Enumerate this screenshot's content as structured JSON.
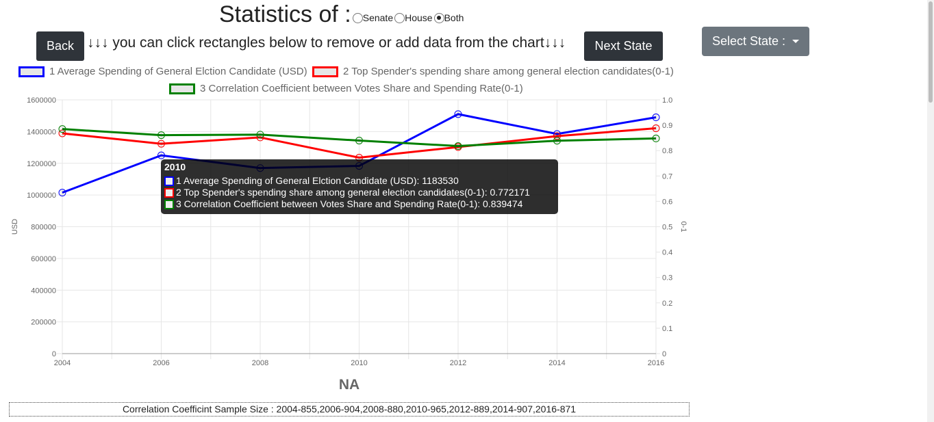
{
  "header": {
    "title": "Statistics of :",
    "radios": [
      {
        "label": "Senate",
        "checked": false
      },
      {
        "label": "House",
        "checked": false
      },
      {
        "label": "Both",
        "checked": true
      }
    ],
    "back_label": "Back",
    "instruction": "↓↓↓ you can click rectangles below to remove or add data from the chart↓↓↓",
    "next_label": "Next State",
    "select_label": "Select State :"
  },
  "legend": [
    {
      "label": "1 Average Spending of General Elction Candidate (USD)",
      "color": "#0000ff"
    },
    {
      "label": "2 Top Spender's spending share among general election candidates(0-1)",
      "color": "#ff0000"
    },
    {
      "label": "3 Correlation Coefficient between Votes Share and Spending Rate(0-1)",
      "color": "#008000"
    }
  ],
  "chart_data": {
    "type": "line",
    "x": [
      2004,
      2006,
      2008,
      2010,
      2012,
      2014,
      2016
    ],
    "series": [
      {
        "name": "1 Average Spending of General Elction Candidate (USD)",
        "axis": "left",
        "color": "#0000ff",
        "values": [
          1015000,
          1250000,
          1170000,
          1183530,
          1510000,
          1385000,
          1490000
        ]
      },
      {
        "name": "2 Top Spender's spending share among general election candidates(0-1)",
        "axis": "right",
        "color": "#ff0000",
        "values": [
          0.868,
          0.827,
          0.852,
          0.772171,
          0.814,
          0.857,
          0.888
        ]
      },
      {
        "name": "3 Correlation Coefficient between Votes Share and Spending Rate(0-1)",
        "axis": "right",
        "color": "#008000",
        "values": [
          0.885,
          0.861,
          0.863,
          0.839474,
          0.818,
          0.839,
          0.848
        ]
      }
    ],
    "ylabel": "USD",
    "y2label": "0-1",
    "ylim": [
      0,
      1600000
    ],
    "y2lim": [
      0,
      1.0
    ],
    "yticks": [
      "0",
      "200000",
      "400000",
      "600000",
      "800000",
      "1000000",
      "1200000",
      "1400000",
      "1600000"
    ],
    "y2ticks": [
      "0",
      "0.1",
      "0.2",
      "0.3",
      "0.4",
      "0.5",
      "0.6",
      "0.7",
      "0.8",
      "0.9",
      "1.0"
    ],
    "xticks": [
      "2004",
      "2006",
      "2008",
      "2010",
      "2012",
      "2014",
      "2016"
    ],
    "grid": true
  },
  "tooltip": {
    "title": "2010",
    "lines": [
      "1 Average Spending of General Elction Candidate (USD): 1183530",
      "2 Top Spender's spending share among general election candidates(0-1): 0.772171",
      "3 Correlation Coefficient between Votes Share and Spending Rate(0-1): 0.839474"
    ]
  },
  "state_label": "NA",
  "sample_size": "Correlation Coefficint Sample Size : 2004-855,2006-904,2008-880,2010-965,2012-889,2014-907,2016-871"
}
